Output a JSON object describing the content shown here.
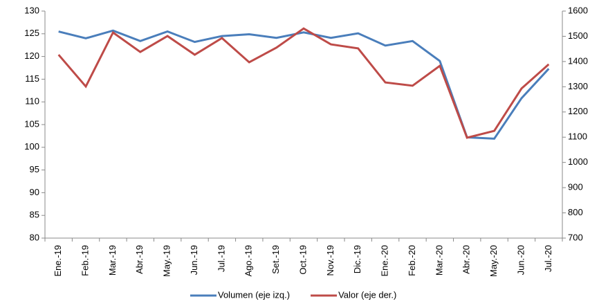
{
  "chart_data": {
    "type": "line",
    "categories": [
      "Ene.-19",
      "Feb.-19",
      "Mar.-19",
      "Abr.-19",
      "May.-19",
      "Jun.-19",
      "Jul.-19",
      "Ago.-19",
      "Set.-19",
      "Oct.-19",
      "Nov.-19",
      "Dic.-19",
      "Ene.-20",
      "Feb.-20",
      "Mar.-20",
      "Abr.-20",
      "May.-20",
      "Jun.-20",
      "Jul.-20"
    ],
    "series": [
      {
        "name": "Volumen (eje izq.)",
        "color": "#4a7ebb",
        "values": [
          125.5,
          124,
          125.7,
          123.4,
          125.5,
          123.2,
          124.5,
          124.9,
          124.1,
          125.3,
          124.1,
          125.1,
          122.4,
          123.4,
          119,
          102.2,
          101.9,
          110.8,
          117.3
        ]
      },
      {
        "name": "Valor (eje der.)",
        "color": "#be4b48",
        "axis": "y2",
        "values": [
          1427,
          1301,
          1515,
          1438,
          1501,
          1427,
          1493,
          1397,
          1455,
          1531,
          1468,
          1452,
          1317,
          1304,
          1383,
          1098,
          1125,
          1293,
          1389
        ]
      }
    ],
    "ylim": [
      80,
      130
    ],
    "yticks": [
      80,
      85,
      90,
      95,
      100,
      105,
      110,
      115,
      120,
      125,
      130
    ],
    "y2lim": [
      700,
      1600
    ],
    "y2ticks": [
      700,
      800,
      900,
      1000,
      1100,
      1200,
      1300,
      1400,
      1500,
      1600
    ],
    "legend": "bottom"
  }
}
